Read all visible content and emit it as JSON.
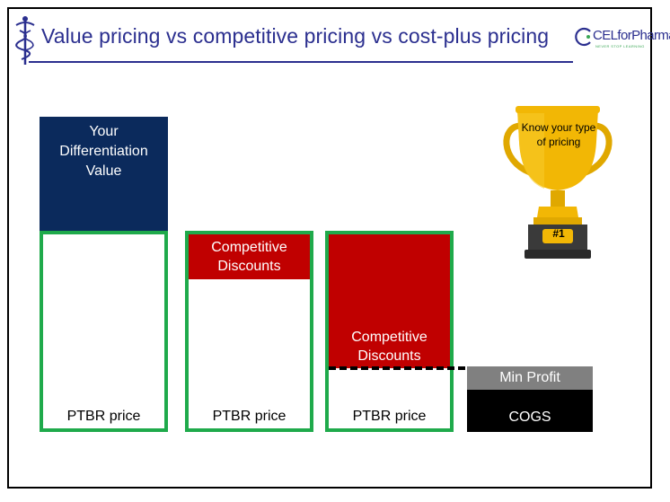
{
  "slide": {
    "title": "Value pricing vs competitive pricing vs cost-plus pricing",
    "logo_text": "CELforPharma",
    "logo_tagline": "NEVER STOP LEARNING"
  },
  "columns": [
    {
      "top_label": "Your Differentiation Value",
      "bottom_label": "PTBR price"
    },
    {
      "top_label": "Competitive Discounts",
      "bottom_label": "PTBR price"
    },
    {
      "top_label": "Competitive Discounts",
      "bottom_label": "PTBR price"
    },
    {
      "top_label": "Min Profit",
      "bottom_label": "COGS"
    }
  ],
  "trophy": {
    "text": "Know your type of pricing",
    "badge": "#1",
    "icon": "trophy-icon"
  },
  "colors": {
    "title": "#2b2f8f",
    "navy": "#0b2a5c",
    "green": "#1faa4b",
    "red": "#c00000",
    "gray": "#808080",
    "gold": "#f2b705"
  }
}
